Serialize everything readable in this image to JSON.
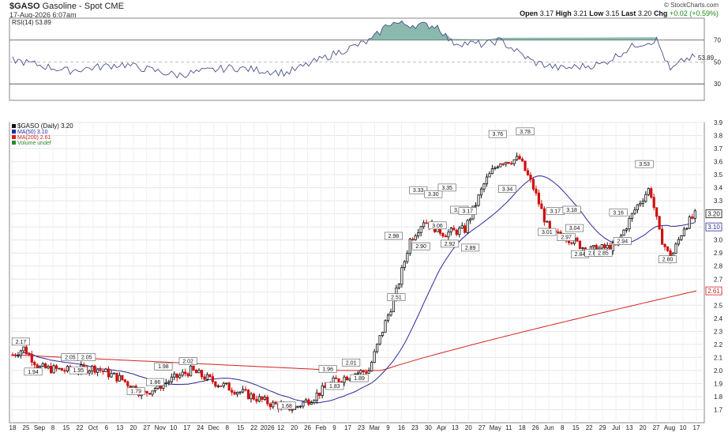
{
  "header": {
    "symbol": "$GASO",
    "description": "Gasoline - Spot",
    "exchange": "CME",
    "datetime": "17-Aug-2026 6:07am",
    "open_label": "Open",
    "open": "3.17",
    "high_label": "High",
    "high": "3.21",
    "low_label": "Low",
    "low": "3.15",
    "last_label": "Last",
    "last": "3.20",
    "chg_label": "Chg",
    "chg": "+0.02 (+0.59%)",
    "logo": "© StockCharts.com"
  },
  "rsi_panel": {
    "label": "RSI(14) 53.89",
    "levels": [
      70,
      50,
      30
    ],
    "right_labels": [
      "70",
      "50",
      "30"
    ],
    "current_tag": "53.89",
    "overbought_fill": "#6fa89a",
    "line_color": "#4a4f8c"
  },
  "price_panel": {
    "legend": [
      {
        "text": "$GASO (Daily) 3.20",
        "color": "#111111"
      },
      {
        "text": "MA(50) 3.10",
        "color": "#2a2a9a"
      },
      {
        "text": "MA(200) 2.61",
        "color": "#d42020"
      },
      {
        "text": "Volume undef",
        "color": "#2a8a2a"
      }
    ],
    "tags": [
      {
        "text": "3.20",
        "color": "#111111",
        "value": 3.2
      },
      {
        "text": "3.10",
        "color": "#2a2a9a",
        "value": 3.1
      },
      {
        "text": "2.61",
        "color": "#d42020",
        "value": 2.61
      }
    ],
    "up_color": "#111111",
    "down_color": "#d01010",
    "ma50_color": "#2a2a9a",
    "ma200_color": "#d42020"
  },
  "chart_data": {
    "type": "candlestick",
    "ylim": [
      1.6,
      3.9
    ],
    "y_ticks": [
      "3.9",
      "3.8",
      "3.7",
      "3.6",
      "3.5",
      "3.4",
      "3.3",
      "3.2",
      "3.1",
      "3.0",
      "2.9",
      "2.8",
      "2.7",
      "2.6",
      "2.5",
      "2.4",
      "2.3",
      "2.2",
      "2.1",
      "2.0",
      "1.9",
      "1.8",
      "1.7"
    ],
    "x_labels": [
      "18",
      "25",
      "Sep",
      "8",
      "15",
      "22",
      "Oct",
      "6",
      "13",
      "20",
      "27",
      "Nov",
      "10",
      "17",
      "24",
      "Dec",
      "8",
      "15",
      "22",
      "2026",
      "12",
      "20",
      "26",
      "Feb",
      "9",
      "17",
      "23",
      "Mar",
      "9",
      "16",
      "23",
      "30",
      "Apr",
      "13",
      "20",
      "27",
      "May",
      "11",
      "18",
      "26",
      "Jun",
      "8",
      "15",
      "22",
      "29",
      "Jul",
      "13",
      "20",
      "27",
      "Aug",
      "10",
      "17"
    ],
    "annotations": [
      {
        "text": "2.17",
        "x": 6,
        "value": 2.17
      },
      {
        "text": "1.94",
        "x": 15,
        "value": 1.94
      },
      {
        "text": "2.05",
        "x": 42,
        "value": 2.05
      },
      {
        "text": "1.95",
        "x": 48,
        "value": 1.95
      },
      {
        "text": "2.05",
        "x": 54,
        "value": 2.05
      },
      {
        "text": "1.79",
        "x": 90,
        "value": 1.79
      },
      {
        "text": "1.86",
        "x": 104,
        "value": 1.86
      },
      {
        "text": "1.98",
        "x": 110,
        "value": 1.98
      },
      {
        "text": "2.02",
        "x": 128,
        "value": 2.02
      },
      {
        "text": "1.68",
        "x": 200,
        "value": 1.68
      },
      {
        "text": "1.96",
        "x": 230,
        "value": 1.96
      },
      {
        "text": "1.83",
        "x": 235,
        "value": 1.83
      },
      {
        "text": "2.01",
        "x": 247,
        "value": 2.01
      },
      {
        "text": "1.89",
        "x": 253,
        "value": 1.89
      },
      {
        "text": "2.51",
        "x": 280,
        "value": 2.51
      },
      {
        "text": "2.98",
        "x": 278,
        "value": 2.98
      },
      {
        "text": "3.33",
        "x": 296,
        "value": 3.33
      },
      {
        "text": "2.90",
        "x": 298,
        "value": 2.9
      },
      {
        "text": "3.30",
        "x": 307,
        "value": 3.3
      },
      {
        "text": "3.06",
        "x": 310,
        "value": 3.06
      },
      {
        "text": "3.35",
        "x": 317,
        "value": 3.35
      },
      {
        "text": "2.92",
        "x": 319,
        "value": 2.92
      },
      {
        "text": "3.18",
        "x": 326,
        "value": 3.18
      },
      {
        "text": "3.17",
        "x": 332,
        "value": 3.17
      },
      {
        "text": "2.89",
        "x": 334,
        "value": 2.89
      },
      {
        "text": "3.76",
        "x": 354,
        "value": 3.76
      },
      {
        "text": "3.34",
        "x": 361,
        "value": 3.34
      },
      {
        "text": "3.78",
        "x": 374,
        "value": 3.78
      },
      {
        "text": "3.01",
        "x": 390,
        "value": 3.01
      },
      {
        "text": "3.17",
        "x": 396,
        "value": 3.17
      },
      {
        "text": "2.97",
        "x": 404,
        "value": 2.97
      },
      {
        "text": "3.18",
        "x": 408,
        "value": 3.18
      },
      {
        "text": "3.04",
        "x": 410,
        "value": 3.04
      },
      {
        "text": "2.84",
        "x": 414,
        "value": 2.84
      },
      {
        "text": "2.85",
        "x": 424,
        "value": 2.85
      },
      {
        "text": "2.85",
        "x": 431,
        "value": 2.85
      },
      {
        "text": "3.16",
        "x": 442,
        "value": 3.16
      },
      {
        "text": "2.94",
        "x": 445,
        "value": 2.94
      },
      {
        "text": "3.53",
        "x": 461,
        "value": 3.53
      },
      {
        "text": "2.80",
        "x": 478,
        "value": 2.8
      }
    ]
  }
}
